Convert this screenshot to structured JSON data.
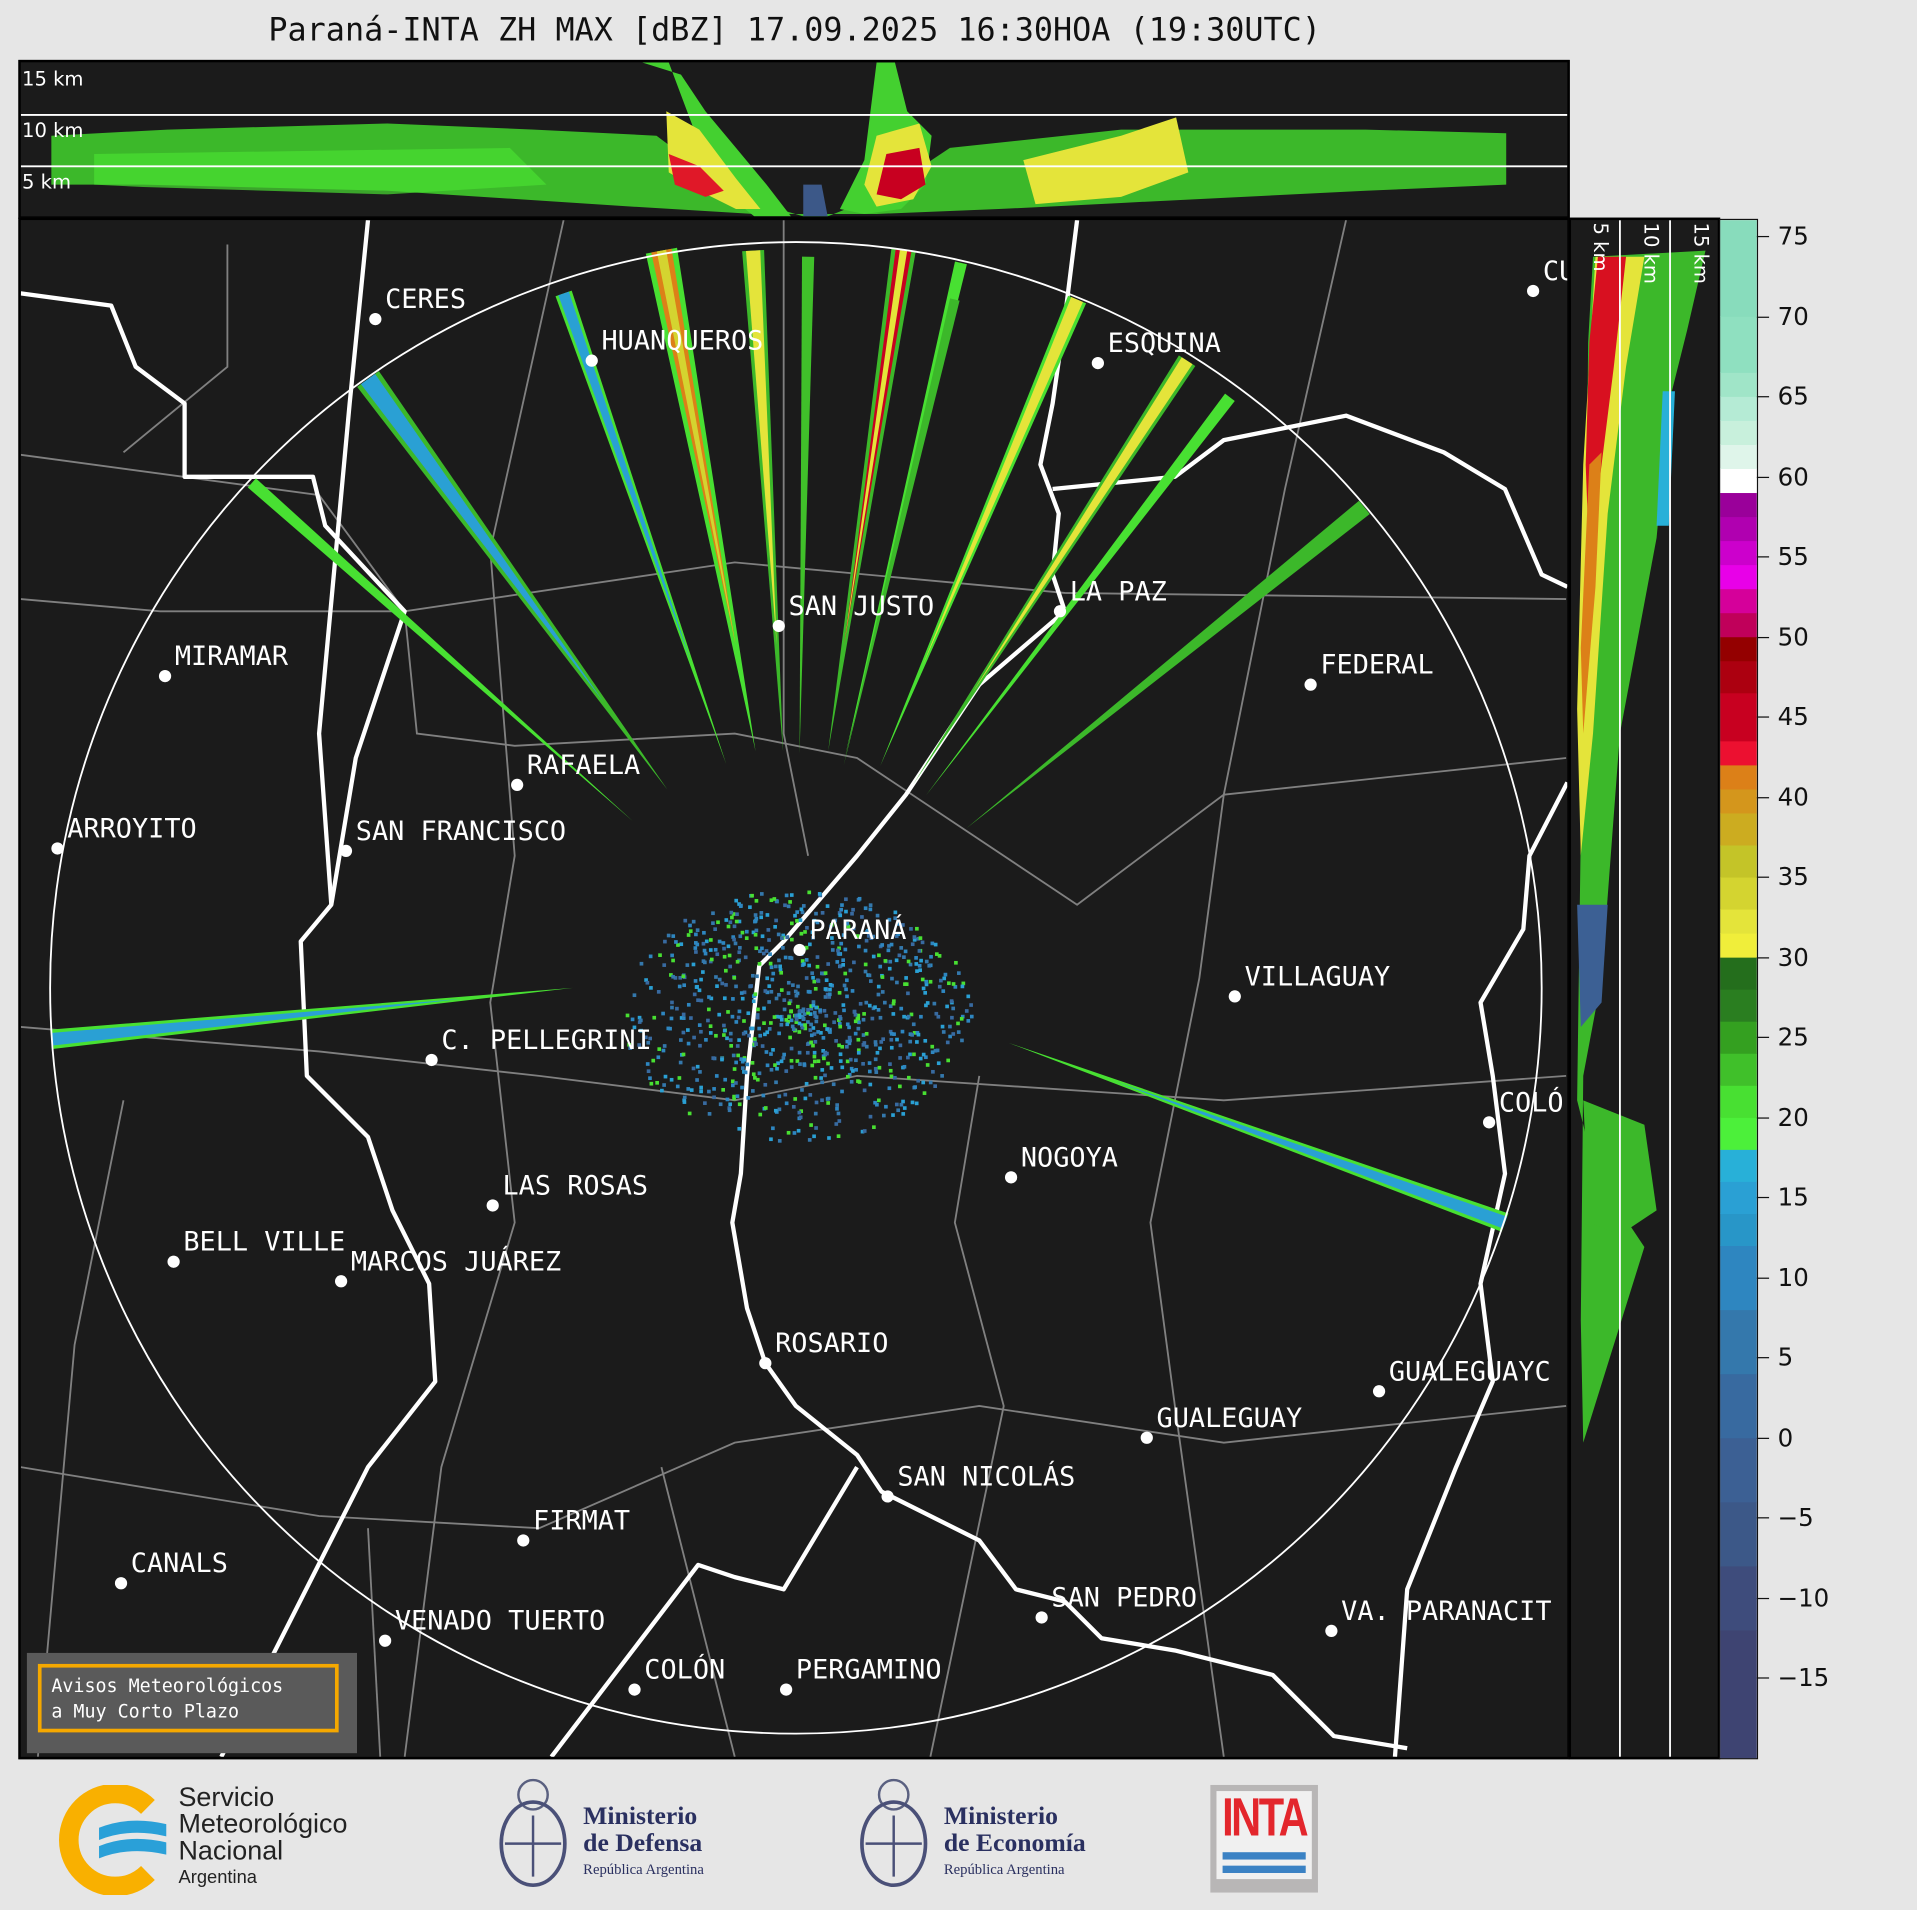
{
  "title": "Paraná-INTA ZH MAX [dBZ] 17.09.2025 16:30HOA (19:30UTC)",
  "top_section": {
    "labels": [
      "15 km",
      "10 km",
      "5 km"
    ]
  },
  "right_section": {
    "labels": [
      "5 km",
      "10 km",
      "15 km"
    ]
  },
  "cities": [
    {
      "name": "CERES"
    },
    {
      "name": "HUANQUEROS"
    },
    {
      "name": "ESQUINA"
    },
    {
      "name": "CU"
    },
    {
      "name": "SAN JUSTO"
    },
    {
      "name": "LA PAZ"
    },
    {
      "name": "MIRAMAR"
    },
    {
      "name": "FEDERAL"
    },
    {
      "name": "RAFAELA"
    },
    {
      "name": "ARROYITO"
    },
    {
      "name": "SAN FRANCISCO"
    },
    {
      "name": "PARANÁ"
    },
    {
      "name": "VILLAGUAY"
    },
    {
      "name": "C. PELLEGRINI"
    },
    {
      "name": "COLÓ"
    },
    {
      "name": "NOGOYA"
    },
    {
      "name": "LAS ROSAS"
    },
    {
      "name": "BELL VILLE"
    },
    {
      "name": "MARCOS JUÁREZ"
    },
    {
      "name": "ROSARIO"
    },
    {
      "name": "GUALEGUAYC"
    },
    {
      "name": "GUALEGUAY"
    },
    {
      "name": "SAN NICOLÁS"
    },
    {
      "name": "FIRMAT"
    },
    {
      "name": "CANALS"
    },
    {
      "name": "SAN PEDRO"
    },
    {
      "name": "VA. PARANACIT"
    },
    {
      "name": "VENADO TUERTO"
    },
    {
      "name": "COLÓN"
    },
    {
      "name": "PERGAMINO"
    }
  ],
  "aviso": {
    "line1": "Avisos Meteorológicos",
    "line2": "a Muy Corto Plazo"
  },
  "colorbar": {
    "unit": "dBZ",
    "range": [
      -20,
      76
    ],
    "ticks": [
      "75",
      "70",
      "65",
      "60",
      "55",
      "50",
      "45",
      "40",
      "35",
      "30",
      "25",
      "20",
      "15",
      "10",
      "5",
      "0",
      "−5",
      "−10",
      "−15"
    ],
    "tick_values": [
      75,
      70,
      65,
      60,
      55,
      50,
      45,
      40,
      35,
      30,
      25,
      20,
      15,
      10,
      5,
      0,
      -5,
      -10,
      -15
    ],
    "levels": [
      {
        "from": -20,
        "to": -12,
        "color": "#3e4472"
      },
      {
        "from": -12,
        "to": -8,
        "color": "#3e4c7c"
      },
      {
        "from": -8,
        "to": -4,
        "color": "#3c5888"
      },
      {
        "from": -4,
        "to": 0,
        "color": "#3c6094"
      },
      {
        "from": 0,
        "to": 4,
        "color": "#386aa0"
      },
      {
        "from": 4,
        "to": 8,
        "color": "#3478ac"
      },
      {
        "from": 8,
        "to": 12,
        "color": "#2e86c0"
      },
      {
        "from": 12,
        "to": 14,
        "color": "#2896c8"
      },
      {
        "from": 14,
        "to": 16,
        "color": "#2aa0d4"
      },
      {
        "from": 16,
        "to": 18,
        "color": "#28b0d8"
      },
      {
        "from": 18,
        "to": 20,
        "color": "#4cf03a"
      },
      {
        "from": 20,
        "to": 22,
        "color": "#48e032"
      },
      {
        "from": 22,
        "to": 24,
        "color": "#40c02a"
      },
      {
        "from": 24,
        "to": 26,
        "color": "#34a020"
      },
      {
        "from": 26,
        "to": 28,
        "color": "#2a7e20"
      },
      {
        "from": 28,
        "to": 30,
        "color": "#246e1c"
      },
      {
        "from": 30,
        "to": 31.5,
        "color": "#f0ee3a"
      },
      {
        "from": 31.5,
        "to": 33,
        "color": "#e4e43a"
      },
      {
        "from": 33,
        "to": 35,
        "color": "#d4d430"
      },
      {
        "from": 35,
        "to": 37,
        "color": "#c4c428"
      },
      {
        "from": 37,
        "to": 39,
        "color": "#ccac20"
      },
      {
        "from": 39,
        "to": 40.5,
        "color": "#d4961c"
      },
      {
        "from": 40.5,
        "to": 42,
        "color": "#dc8018"
      },
      {
        "from": 42,
        "to": 43.5,
        "color": "#ec1030"
      },
      {
        "from": 43.5,
        "to": 46.5,
        "color": "#c80020"
      },
      {
        "from": 46.5,
        "to": 48.5,
        "color": "#ac0010"
      },
      {
        "from": 48.5,
        "to": 50,
        "color": "#940000"
      },
      {
        "from": 50,
        "to": 51.5,
        "color": "#c0005a"
      },
      {
        "from": 51.5,
        "to": 53,
        "color": "#d5009a"
      },
      {
        "from": 53,
        "to": 54.5,
        "color": "#e800e8"
      },
      {
        "from": 54.5,
        "to": 56,
        "color": "#cc00cc"
      },
      {
        "from": 56,
        "to": 57.5,
        "color": "#b000b0"
      },
      {
        "from": 57.5,
        "to": 59,
        "color": "#9a009a"
      },
      {
        "from": 59,
        "to": 60.5,
        "color": "#ffffff"
      },
      {
        "from": 60.5,
        "to": 62,
        "color": "#dff5ea"
      },
      {
        "from": 62,
        "to": 63.5,
        "color": "#c8f0dc"
      },
      {
        "from": 63.5,
        "to": 65,
        "color": "#b5ebd5"
      },
      {
        "from": 65,
        "to": 66.5,
        "color": "#a0e5c8"
      },
      {
        "from": 66.5,
        "to": 70,
        "color": "#8fe0c0"
      },
      {
        "from": 70,
        "to": 76,
        "color": "#88dcbc"
      }
    ]
  },
  "logos": {
    "smn": {
      "line1": "Servicio",
      "line2": "Meteorológico",
      "line3": "Nacional",
      "line4": "Argentina"
    },
    "defensa": {
      "line1": "Ministerio",
      "line2": "de Defensa",
      "line3": "República Argentina"
    },
    "economia": {
      "line1": "Ministerio",
      "line2": "de Economía",
      "line3": "República Argentina"
    },
    "inta": {
      "text": "INTA"
    }
  },
  "colors": {
    "background": "#1b1b1b",
    "ring": "#ffffff",
    "roads": "#808080",
    "aviso_border": "#f5a800",
    "smn_orange": "#f9b000",
    "smn_blue": "#2aa0d8",
    "inta_red": "#e3262c",
    "inta_blue": "#3b82c4"
  }
}
